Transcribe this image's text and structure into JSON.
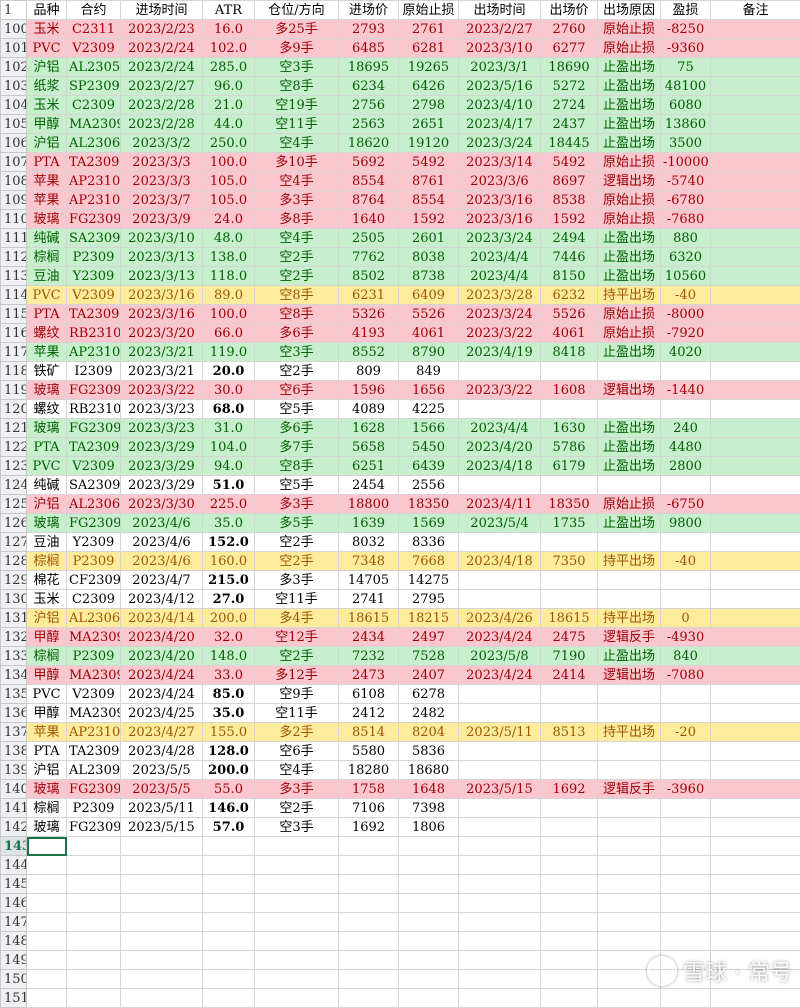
{
  "header": {
    "row_number": "1",
    "columns": [
      "品种",
      "合约",
      "进场时间",
      "ATR",
      "仓位/方向",
      "进场价",
      "原始止损",
      "出场时间",
      "出场价",
      "出场原因",
      "盈损",
      "备注"
    ]
  },
  "rows": [
    {
      "n": "100",
      "c": "red",
      "v": [
        "玉米",
        "C2311",
        "2023/2/23",
        "16.0",
        "多25手",
        "2793",
        "2761",
        "2023/2/27",
        "2760",
        "原始止损",
        "-8250",
        ""
      ]
    },
    {
      "n": "101",
      "c": "red",
      "v": [
        "PVC",
        "V2309",
        "2023/2/24",
        "102.0",
        "多9手",
        "6485",
        "6281",
        "2023/3/10",
        "6277",
        "原始止损",
        "-9360",
        ""
      ]
    },
    {
      "n": "102",
      "c": "green",
      "v": [
        "沪铝",
        "AL2305",
        "2023/2/24",
        "285.0",
        "空3手",
        "18695",
        "19265",
        "2023/3/1",
        "18690",
        "止盈出场",
        "75",
        ""
      ]
    },
    {
      "n": "103",
      "c": "green",
      "v": [
        "纸浆",
        "SP2309",
        "2023/2/27",
        "96.0",
        "空8手",
        "6234",
        "6426",
        "2023/5/16",
        "5272",
        "止盈出场",
        "48100",
        ""
      ]
    },
    {
      "n": "104",
      "c": "green",
      "v": [
        "玉米",
        "C2309",
        "2023/2/28",
        "21.0",
        "空19手",
        "2756",
        "2798",
        "2023/4/10",
        "2724",
        "止盈出场",
        "6080",
        ""
      ]
    },
    {
      "n": "105",
      "c": "green",
      "v": [
        "甲醇",
        "MA2309",
        "2023/2/28",
        "44.0",
        "空11手",
        "2563",
        "2651",
        "2023/4/17",
        "2437",
        "止盈出场",
        "13860",
        ""
      ]
    },
    {
      "n": "106",
      "c": "green",
      "v": [
        "沪铝",
        "AL2306",
        "2023/3/2",
        "250.0",
        "空4手",
        "18620",
        "19120",
        "2023/3/24",
        "18445",
        "止盈出场",
        "3500",
        ""
      ]
    },
    {
      "n": "107",
      "c": "red",
      "v": [
        "PTA",
        "TA2309",
        "2023/3/3",
        "100.0",
        "多10手",
        "5692",
        "5492",
        "2023/3/14",
        "5492",
        "原始止损",
        "-10000",
        ""
      ]
    },
    {
      "n": "108",
      "c": "red",
      "v": [
        "苹果",
        "AP2310",
        "2023/3/3",
        "105.0",
        "空4手",
        "8554",
        "8761",
        "2023/3/6",
        "8697",
        "逻辑出场",
        "-5740",
        ""
      ]
    },
    {
      "n": "109",
      "c": "red",
      "v": [
        "苹果",
        "AP2310",
        "2023/3/7",
        "105.0",
        "多3手",
        "8764",
        "8554",
        "2023/3/16",
        "8538",
        "原始止损",
        "-6780",
        ""
      ]
    },
    {
      "n": "110",
      "c": "red",
      "v": [
        "玻璃",
        "FG2309",
        "2023/3/9",
        "24.0",
        "多8手",
        "1640",
        "1592",
        "2023/3/16",
        "1592",
        "原始止损",
        "-7680",
        ""
      ]
    },
    {
      "n": "111",
      "c": "green",
      "v": [
        "纯碱",
        "SA2309",
        "2023/3/10",
        "48.0",
        "空4手",
        "2505",
        "2601",
        "2023/3/24",
        "2494",
        "止盈出场",
        "880",
        ""
      ]
    },
    {
      "n": "112",
      "c": "green",
      "v": [
        "棕榈",
        "P2309",
        "2023/3/13",
        "138.0",
        "空2手",
        "7762",
        "8038",
        "2023/4/4",
        "7446",
        "止盈出场",
        "6320",
        ""
      ]
    },
    {
      "n": "113",
      "c": "green",
      "v": [
        "豆油",
        "Y2309",
        "2023/3/13",
        "118.0",
        "空2手",
        "8502",
        "8738",
        "2023/4/4",
        "8150",
        "止盈出场",
        "10560",
        ""
      ]
    },
    {
      "n": "114",
      "c": "yellow",
      "v": [
        "PVC",
        "V2309",
        "2023/3/16",
        "89.0",
        "空8手",
        "6231",
        "6409",
        "2023/3/28",
        "6232",
        "持平出场",
        "-40",
        ""
      ]
    },
    {
      "n": "115",
      "c": "red",
      "v": [
        "PTA",
        "TA2309",
        "2023/3/16",
        "100.0",
        "空8手",
        "5326",
        "5526",
        "2023/3/24",
        "5526",
        "原始止损",
        "-8000",
        ""
      ]
    },
    {
      "n": "116",
      "c": "red",
      "v": [
        "螺纹",
        "RB2310",
        "2023/3/20",
        "66.0",
        "多6手",
        "4193",
        "4061",
        "2023/3/22",
        "4061",
        "原始止损",
        "-7920",
        ""
      ]
    },
    {
      "n": "117",
      "c": "green",
      "v": [
        "苹果",
        "AP2310",
        "2023/3/21",
        "119.0",
        "空3手",
        "8552",
        "8790",
        "2023/4/19",
        "8418",
        "止盈出场",
        "4020",
        ""
      ]
    },
    {
      "n": "118",
      "c": "white",
      "b": true,
      "v": [
        "铁矿",
        "I2309",
        "2023/3/21",
        "20.0",
        "空2手",
        "809",
        "849",
        "",
        "",
        "",
        "",
        ""
      ]
    },
    {
      "n": "119",
      "c": "red",
      "v": [
        "玻璃",
        "FG2309",
        "2023/3/22",
        "30.0",
        "空6手",
        "1596",
        "1656",
        "2023/3/22",
        "1608",
        "逻辑出场",
        "-1440",
        ""
      ]
    },
    {
      "n": "120",
      "c": "white",
      "b": true,
      "v": [
        "螺纹",
        "RB2310",
        "2023/3/23",
        "68.0",
        "空5手",
        "4089",
        "4225",
        "",
        "",
        "",
        "",
        ""
      ]
    },
    {
      "n": "121",
      "c": "green",
      "v": [
        "玻璃",
        "FG2309",
        "2023/3/23",
        "31.0",
        "多6手",
        "1628",
        "1566",
        "2023/4/4",
        "1630",
        "止盈出场",
        "240",
        ""
      ]
    },
    {
      "n": "122",
      "c": "green",
      "v": [
        "PTA",
        "TA2309",
        "2023/3/29",
        "104.0",
        "多7手",
        "5658",
        "5450",
        "2023/4/20",
        "5786",
        "止盈出场",
        "4480",
        ""
      ]
    },
    {
      "n": "123",
      "c": "green",
      "v": [
        "PVC",
        "V2309",
        "2023/3/29",
        "94.0",
        "空8手",
        "6251",
        "6439",
        "2023/4/18",
        "6179",
        "止盈出场",
        "2800",
        ""
      ]
    },
    {
      "n": "124",
      "c": "white",
      "b": true,
      "v": [
        "纯碱",
        "SA2309",
        "2023/3/29",
        "51.0",
        "空5手",
        "2454",
        "2556",
        "",
        "",
        "",
        "",
        ""
      ]
    },
    {
      "n": "125",
      "c": "red",
      "v": [
        "沪铝",
        "AL2306",
        "2023/3/30",
        "225.0",
        "多3手",
        "18800",
        "18350",
        "2023/4/11",
        "18350",
        "原始止损",
        "-6750",
        ""
      ]
    },
    {
      "n": "126",
      "c": "green",
      "v": [
        "玻璃",
        "FG2309",
        "2023/4/6",
        "35.0",
        "多5手",
        "1639",
        "1569",
        "2023/5/4",
        "1735",
        "止盈出场",
        "9800",
        ""
      ]
    },
    {
      "n": "127",
      "c": "white",
      "b": true,
      "v": [
        "豆油",
        "Y2309",
        "2023/4/6",
        "152.0",
        "空2手",
        "8032",
        "8336",
        "",
        "",
        "",
        "",
        ""
      ]
    },
    {
      "n": "128",
      "c": "yellow",
      "v": [
        "棕榈",
        "P2309",
        "2023/4/6",
        "160.0",
        "空2手",
        "7348",
        "7668",
        "2023/4/18",
        "7350",
        "持平出场",
        "-40",
        ""
      ]
    },
    {
      "n": "129",
      "c": "white",
      "b": true,
      "v": [
        "棉花",
        "CF2309",
        "2023/4/7",
        "215.0",
        "多3手",
        "14705",
        "14275",
        "",
        "",
        "",
        "",
        ""
      ]
    },
    {
      "n": "130",
      "c": "white",
      "b": true,
      "v": [
        "玉米",
        "C2309",
        "2023/4/12",
        "27.0",
        "空11手",
        "2741",
        "2795",
        "",
        "",
        "",
        "",
        ""
      ]
    },
    {
      "n": "131",
      "c": "yellow",
      "v": [
        "沪铝",
        "AL2306",
        "2023/4/14",
        "200.0",
        "多4手",
        "18615",
        "18215",
        "2023/4/26",
        "18615",
        "持平出场",
        "0",
        ""
      ]
    },
    {
      "n": "132",
      "c": "red",
      "v": [
        "甲醇",
        "MA2309",
        "2023/4/20",
        "32.0",
        "空12手",
        "2434",
        "2497",
        "2023/4/24",
        "2475",
        "逻辑反手",
        "-4930",
        ""
      ]
    },
    {
      "n": "133",
      "c": "green",
      "v": [
        "棕榈",
        "P2309",
        "2023/4/20",
        "148.0",
        "空2手",
        "7232",
        "7528",
        "2023/5/8",
        "7190",
        "止盈出场",
        "840",
        ""
      ]
    },
    {
      "n": "134",
      "c": "red",
      "v": [
        "甲醇",
        "MA2309",
        "2023/4/24",
        "33.0",
        "多12手",
        "2473",
        "2407",
        "2023/4/24",
        "2414",
        "逻辑出场",
        "-7080",
        ""
      ]
    },
    {
      "n": "135",
      "c": "white",
      "b": true,
      "v": [
        "PVC",
        "V2309",
        "2023/4/24",
        "85.0",
        "空9手",
        "6108",
        "6278",
        "",
        "",
        "",
        "",
        ""
      ]
    },
    {
      "n": "136",
      "c": "white",
      "b": true,
      "v": [
        "甲醇",
        "MA2309",
        "2023/4/25",
        "35.0",
        "空11手",
        "2412",
        "2482",
        "",
        "",
        "",
        "",
        ""
      ]
    },
    {
      "n": "137",
      "c": "yellow",
      "v": [
        "苹果",
        "AP2310",
        "2023/4/27",
        "155.0",
        "多2手",
        "8514",
        "8204",
        "2023/5/11",
        "8513",
        "持平出场",
        "-20",
        ""
      ]
    },
    {
      "n": "138",
      "c": "white",
      "b": true,
      "v": [
        "PTA",
        "TA2309",
        "2023/4/28",
        "128.0",
        "空6手",
        "5580",
        "5836",
        "",
        "",
        "",
        "",
        ""
      ]
    },
    {
      "n": "139",
      "c": "white",
      "b": true,
      "v": [
        "沪铝",
        "AL2309",
        "2023/5/5",
        "200.0",
        "空4手",
        "18280",
        "18680",
        "",
        "",
        "",
        "",
        ""
      ]
    },
    {
      "n": "140",
      "c": "red",
      "v": [
        "玻璃",
        "FG2309",
        "2023/5/5",
        "55.0",
        "多3手",
        "1758",
        "1648",
        "2023/5/15",
        "1692",
        "逻辑反手",
        "-3960",
        ""
      ]
    },
    {
      "n": "141",
      "c": "white",
      "b": true,
      "v": [
        "棕榈",
        "P2309",
        "2023/5/11",
        "146.0",
        "空2手",
        "7106",
        "7398",
        "",
        "",
        "",
        "",
        ""
      ]
    },
    {
      "n": "142",
      "c": "white",
      "b": true,
      "v": [
        "玻璃",
        "FG2309",
        "2023/5/15",
        "57.0",
        "空3手",
        "1692",
        "1806",
        "",
        "",
        "",
        "",
        ""
      ]
    }
  ],
  "empty_rows": [
    "143",
    "144",
    "145",
    "146",
    "147",
    "148",
    "149",
    "150",
    "151"
  ],
  "active_row": "143",
  "colors": {
    "red_fill": "#fbc6cd",
    "green_fill": "#c7eecd",
    "yellow_fill": "#feeb9c",
    "selection": "#1e7145"
  },
  "watermark": "雪球 · 常号"
}
